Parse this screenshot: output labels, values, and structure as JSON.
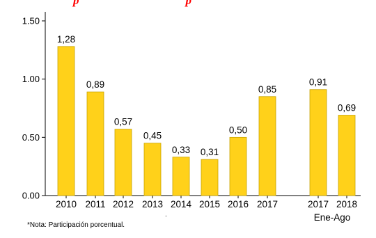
{
  "chart_data": {
    "type": "bar",
    "title_fragment": "p                                    p",
    "categories": [
      "2010",
      "2011",
      "2012",
      "2013",
      "2014",
      "2015",
      "2016",
      "2017",
      "2017",
      "2018"
    ],
    "values": [
      1.28,
      0.89,
      0.57,
      0.45,
      0.33,
      0.31,
      0.5,
      0.85,
      0.91,
      0.69
    ],
    "data_labels": [
      "1,28",
      "0,89",
      "0,57",
      "0,45",
      "0,33",
      "0,31",
      "0,50",
      "0,85",
      "0,91",
      "0,69"
    ],
    "group_label": "Ene-Ago",
    "yticks": [
      "0.00",
      "0.50",
      "1.00",
      "1.50"
    ],
    "ylim": [
      0,
      1.5
    ],
    "grid": false,
    "bar_color": "#ffd11a",
    "bar_edge_color": "#c9a400"
  },
  "note": "*Nota: Participación porcentual.",
  "dot": "."
}
